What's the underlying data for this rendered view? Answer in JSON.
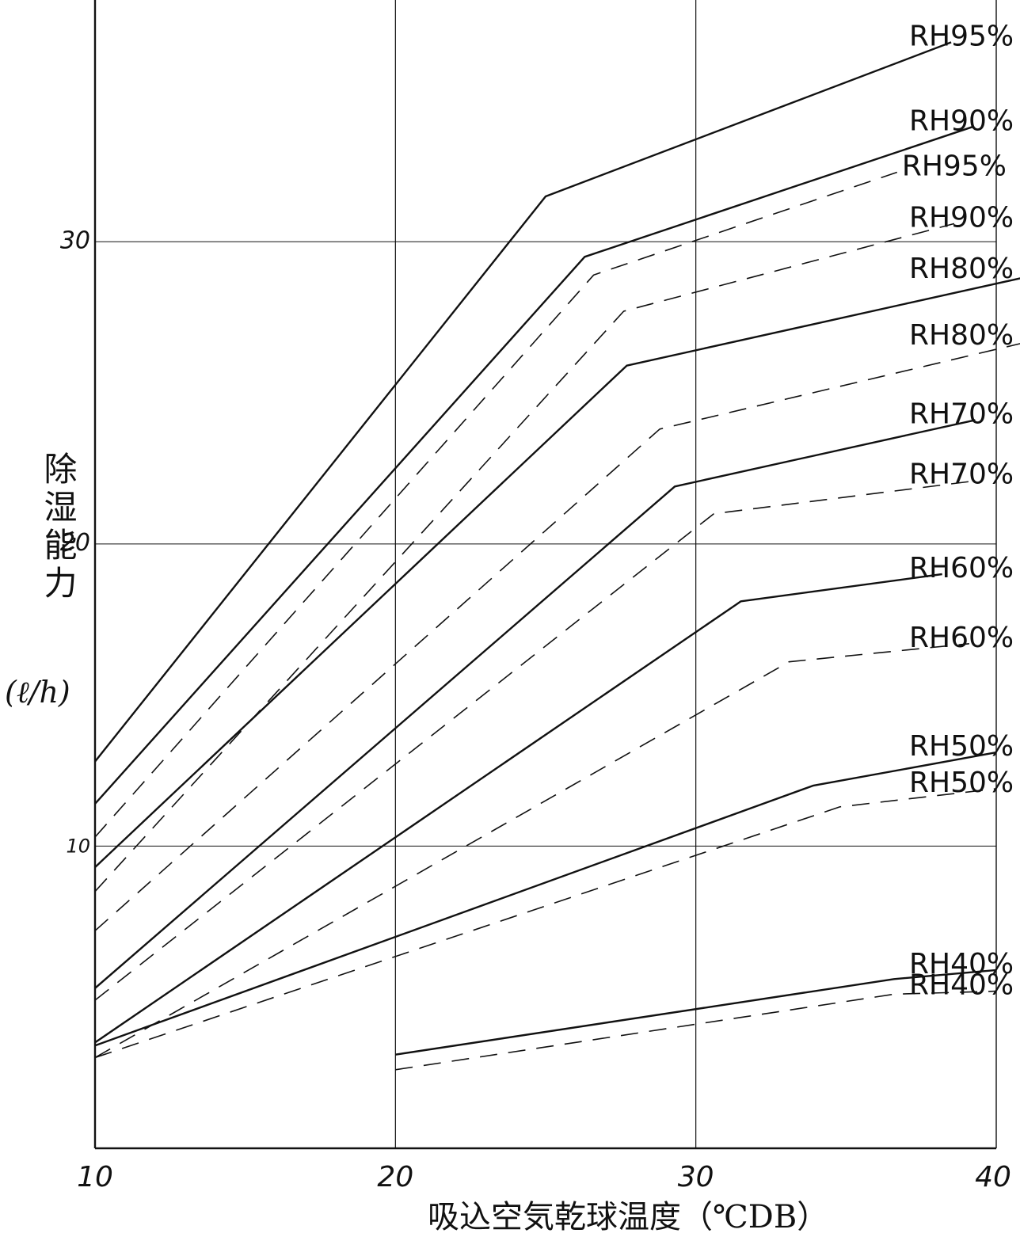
{
  "chart_data": {
    "type": "line",
    "xlabel": "吸込空気乾球温度（℃DB）",
    "ylabel": "除湿能力",
    "yunit": "(ℓ/h)",
    "xlim": [
      10,
      40
    ],
    "ylim": [
      0,
      38
    ],
    "xticks": [
      "10",
      "20",
      "30",
      "40"
    ],
    "yticks": [
      "10",
      "20",
      "30"
    ],
    "grid": true,
    "series": [
      {
        "name": "RH95%",
        "style": "solid",
        "x": [
          10,
          25,
          38.5
        ],
        "y": [
          12.8,
          31.5,
          36.6
        ]
      },
      {
        "name": "RH90%",
        "style": "solid",
        "x": [
          10,
          26.3,
          39.2
        ],
        "y": [
          11.4,
          29.5,
          33.8
        ]
      },
      {
        "name": "RH95%",
        "style": "dashed",
        "x": [
          10,
          26.6,
          36.7
        ],
        "y": [
          10.3,
          28.9,
          32.3
        ]
      },
      {
        "name": "RH90%",
        "style": "dashed",
        "x": [
          10,
          27.6,
          38.6
        ],
        "y": [
          8.5,
          27.7,
          30.6
        ]
      },
      {
        "name": "RH80%",
        "style": "solid",
        "x": [
          10,
          27.7,
          41.3
        ],
        "y": [
          9.3,
          25.9,
          28.9
        ]
      },
      {
        "name": "RH80%",
        "style": "dashed",
        "x": [
          10,
          28.8,
          41.1
        ],
        "y": [
          7.2,
          23.8,
          26.7
        ]
      },
      {
        "name": "RH70%",
        "style": "solid",
        "x": [
          10,
          29.3,
          39.3
        ],
        "y": [
          5.3,
          21.9,
          24.1
        ]
      },
      {
        "name": "RH70%",
        "style": "dashed",
        "x": [
          10,
          30.6,
          39.4
        ],
        "y": [
          4.9,
          21.0,
          22.1
        ]
      },
      {
        "name": "RH60%",
        "style": "solid",
        "x": [
          10,
          31.5,
          38.2
        ],
        "y": [
          3.5,
          18.1,
          19.0
        ]
      },
      {
        "name": "RH60%",
        "style": "dashed",
        "x": [
          10,
          33.1,
          39.1
        ],
        "y": [
          3.0,
          16.1,
          16.7
        ]
      },
      {
        "name": "RH50%",
        "style": "solid",
        "x": [
          10,
          33.9,
          40
        ],
        "y": [
          3.4,
          12.0,
          13.1
        ]
      },
      {
        "name": "RH50%",
        "style": "dashed",
        "x": [
          10,
          34.8,
          40
        ],
        "y": [
          3.0,
          11.3,
          11.9
        ]
      },
      {
        "name": "RH40%",
        "style": "solid",
        "x": [
          20,
          36.6,
          40
        ],
        "y": [
          3.1,
          5.6,
          5.9
        ]
      },
      {
        "name": "RH40%",
        "style": "dashed",
        "x": [
          20,
          36.6,
          40
        ],
        "y": [
          2.6,
          5.1,
          5.2
        ]
      }
    ]
  }
}
